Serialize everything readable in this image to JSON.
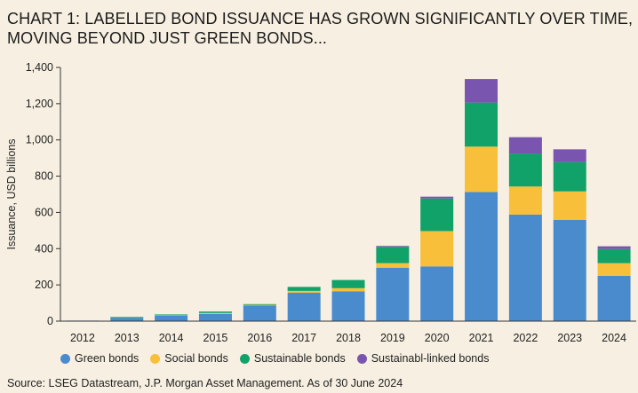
{
  "title_lines": [
    "CHART 1: LABELLED BOND ISSUANCE HAS GROWN SIGNIFICANTLY OVER TIME,",
    "MOVING BEYOND JUST GREEN BONDS..."
  ],
  "source": "Source: LSEG Datastream, J.P. Morgan Asset Management. As of 30 June 2024",
  "chart_data": {
    "type": "bar",
    "stacked": true,
    "title": "CHART 1: LABELLED BOND ISSUANCE HAS GROWN SIGNIFICANTLY OVER TIME, MOVING BEYOND JUST GREEN BONDS...",
    "xlabel": "",
    "ylabel": "Issuance, USD billions",
    "ylim": [
      0,
      1400
    ],
    "yticks": [
      0,
      200,
      400,
      600,
      800,
      1000,
      1200,
      1400
    ],
    "ytick_labels": [
      "0",
      "200",
      "400",
      "600",
      "800",
      "1,000",
      "1,200",
      "1,400"
    ],
    "grid": false,
    "legend_position": "bottom",
    "categories": [
      "2012",
      "2013",
      "2014",
      "2015",
      "2016",
      "2017",
      "2018",
      "2019",
      "2020",
      "2021",
      "2022",
      "2023",
      "2024"
    ],
    "series": [
      {
        "name": "Green bonds",
        "color": "#4a8bce",
        "values": [
          3,
          18,
          32,
          40,
          88,
          157,
          165,
          295,
          302,
          713,
          588,
          558,
          250
        ]
      },
      {
        "name": "Social bonds",
        "color": "#f8bf3a",
        "values": [
          0,
          0,
          2,
          5,
          2,
          10,
          17,
          25,
          195,
          250,
          155,
          158,
          70
        ]
      },
      {
        "name": "Sustainable bonds",
        "color": "#11a26a",
        "values": [
          0,
          5,
          3,
          8,
          4,
          22,
          45,
          90,
          180,
          243,
          182,
          162,
          78
        ]
      },
      {
        "name": "Sustainabl-linked bonds",
        "color": "#7a55b0",
        "values": [
          0,
          0,
          0,
          0,
          0,
          0,
          0,
          5,
          10,
          130,
          90,
          70,
          15
        ]
      }
    ]
  }
}
